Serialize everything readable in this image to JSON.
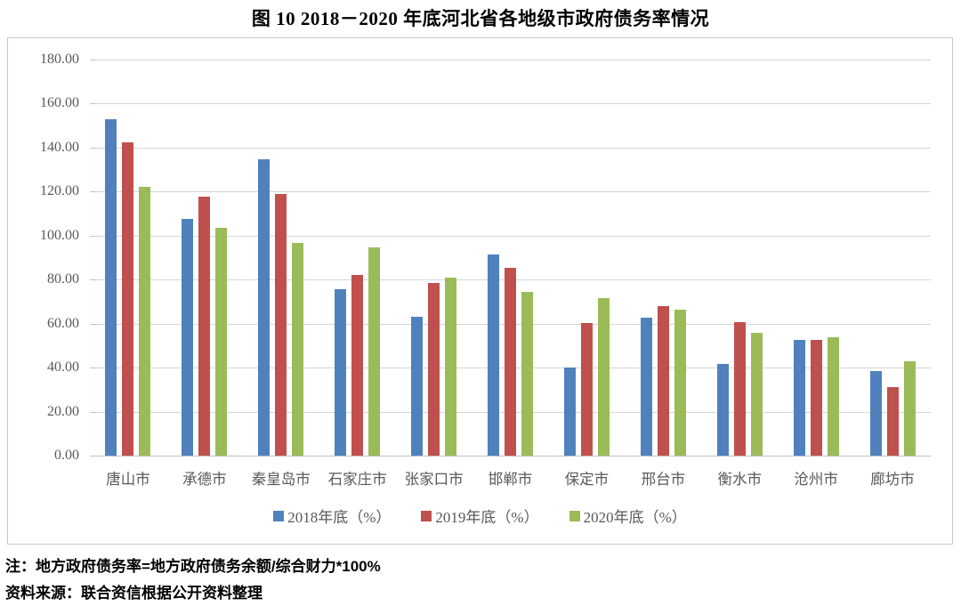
{
  "title": "图 10  2018－2020 年底河北省各地级市政府债务率情况",
  "chart_data": {
    "type": "bar",
    "title": "图 10  2018－2020 年底河北省各地级市政府债务率情况",
    "categories": [
      "唐山市",
      "承德市",
      "秦皇岛市",
      "石家庄市",
      "张家口市",
      "邯郸市",
      "保定市",
      "邢台市",
      "衡水市",
      "沧州市",
      "廊坊市"
    ],
    "series": [
      {
        "name": "2018年底（%）",
        "color": "#4F81BD",
        "values": [
          153.0,
          107.7,
          134.5,
          75.5,
          63.0,
          91.4,
          40.2,
          62.6,
          41.5,
          52.7,
          38.4
        ]
      },
      {
        "name": "2019年底（%）",
        "color": "#C0504D",
        "values": [
          142.3,
          117.9,
          118.8,
          82.2,
          78.5,
          85.5,
          60.1,
          68.0,
          60.5,
          52.6,
          31.2
        ]
      },
      {
        "name": "2020年底（%）",
        "color": "#9BBB59",
        "values": [
          122.3,
          103.6,
          96.5,
          94.6,
          81.0,
          74.3,
          71.6,
          66.5,
          56.0,
          54.0,
          42.9
        ]
      }
    ],
    "xlabel": "",
    "ylabel": "",
    "ylim": [
      0,
      180
    ],
    "ytick_step": 20,
    "ytick_labels": [
      "0.00",
      "20.00",
      "40.00",
      "60.00",
      "80.00",
      "100.00",
      "120.00",
      "140.00",
      "160.00",
      "180.00"
    ],
    "grid": true,
    "legend_position": "bottom"
  },
  "notes": {
    "note": "注：地方政府债务率=地方政府债务余额/综合财力*100%",
    "source": "资料来源：联合资信根据公开资料整理"
  },
  "colors": {
    "grid": "#D6D6D6",
    "axis_text": "#595959",
    "box_border": "#C9C9C9"
  }
}
